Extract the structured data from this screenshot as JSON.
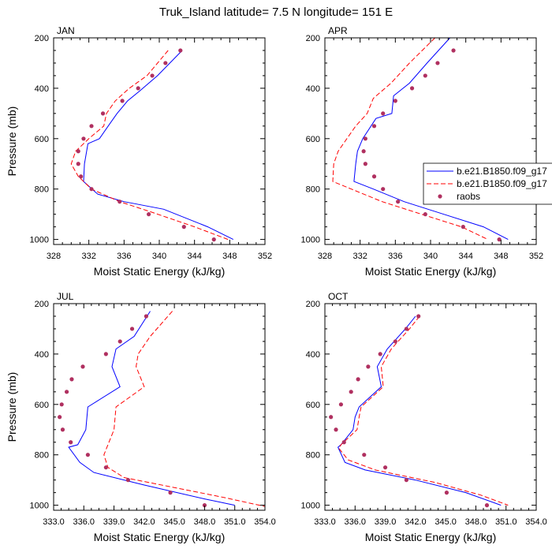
{
  "figure": {
    "title": "Truk_Island  latitude= 7.5 N longitude= 151 E"
  },
  "legend": {
    "placement": "right of APR panel",
    "entries": [
      {
        "label": "b.e21.B1850.f09_g17",
        "color": "#0000ff",
        "style": "solid"
      },
      {
        "label": "b.e21.B1850.f09_g17",
        "color": "#ff0000",
        "style": "dashed"
      },
      {
        "label": "raobs",
        "color": "#b03060",
        "style": "marker"
      }
    ]
  },
  "chart_data": [
    {
      "type": "line",
      "panel": "JAN",
      "xlabel": "Moist Static Energy (kJ/kg)",
      "ylabel": "Pressure (mb)",
      "xlim": [
        328,
        352
      ],
      "ylim": [
        1020,
        200
      ],
      "xticks": [
        328,
        332,
        336,
        340,
        344,
        348,
        352
      ],
      "xtick_labels": [
        "328",
        "332",
        "336",
        "340",
        "344",
        "348",
        "352"
      ],
      "yticks": [
        200,
        400,
        600,
        800,
        1000
      ],
      "ytick_labels": [
        "200",
        "400",
        "600",
        "800",
        "1000"
      ],
      "series": [
        {
          "style": "solid",
          "color": "#0000ff",
          "points": [
            [
              342.6,
              250
            ],
            [
              339.8,
              350
            ],
            [
              337.8,
              410
            ],
            [
              336.4,
              450
            ],
            [
              335.2,
              500
            ],
            [
              334.2,
              550
            ],
            [
              333.2,
              600
            ],
            [
              331.9,
              620
            ],
            [
              331.5,
              700
            ],
            [
              331.4,
              770
            ],
            [
              333.0,
              820
            ],
            [
              336.0,
              850
            ],
            [
              340.5,
              880
            ],
            [
              345.5,
              950
            ],
            [
              348.4,
              1000
            ]
          ]
        },
        {
          "style": "dashed",
          "color": "#ff0000",
          "points": [
            [
              341.0,
              250
            ],
            [
              338.6,
              350
            ],
            [
              336.6,
              400
            ],
            [
              335.0,
              450
            ],
            [
              334.0,
              500
            ],
            [
              333.7,
              550
            ],
            [
              332.0,
              600
            ],
            [
              330.5,
              650
            ],
            [
              330.0,
              700
            ],
            [
              330.8,
              750
            ],
            [
              332.3,
              800
            ],
            [
              335.5,
              850
            ],
            [
              339.0,
              890
            ],
            [
              344.0,
              950
            ],
            [
              347.8,
              1000
            ]
          ]
        },
        {
          "style": "marker",
          "color": "#b03060",
          "points": [
            [
              342.4,
              250
            ],
            [
              340.7,
              300
            ],
            [
              339.2,
              350
            ],
            [
              337.6,
              400
            ],
            [
              335.8,
              450
            ],
            [
              333.6,
              500
            ],
            [
              332.3,
              550
            ],
            [
              331.4,
              600
            ],
            [
              330.8,
              650
            ],
            [
              330.8,
              700
            ],
            [
              331.1,
              750
            ],
            [
              332.3,
              800
            ],
            [
              335.5,
              850
            ],
            [
              338.8,
              900
            ],
            [
              342.8,
              950
            ],
            [
              346.2,
              1000
            ]
          ]
        }
      ]
    },
    {
      "type": "line",
      "panel": "APR",
      "xlabel": "Moist Static Energy (kJ/kg)",
      "ylabel": "",
      "xlim": [
        328,
        352
      ],
      "ylim": [
        1020,
        200
      ],
      "xticks": [
        328,
        332,
        336,
        340,
        344,
        348,
        352
      ],
      "xtick_labels": [
        "328",
        "332",
        "336",
        "340",
        "344",
        "348",
        "352"
      ],
      "yticks": [
        200,
        400,
        600,
        800,
        1000
      ],
      "ytick_labels": [
        "200",
        "400",
        "600",
        "800",
        "1000"
      ],
      "series": [
        {
          "style": "solid",
          "color": "#0000ff",
          "points": [
            [
              342.2,
              200
            ],
            [
              339.6,
              300
            ],
            [
              337.6,
              380
            ],
            [
              335.8,
              430
            ],
            [
              335.6,
              500
            ],
            [
              333.8,
              520
            ],
            [
              332.3,
              600
            ],
            [
              331.7,
              650
            ],
            [
              331.5,
              700
            ],
            [
              331.3,
              770
            ],
            [
              333.5,
              800
            ],
            [
              337.0,
              850
            ],
            [
              341.5,
              900
            ],
            [
              346.0,
              950
            ],
            [
              348.8,
              1000
            ]
          ]
        },
        {
          "style": "dashed",
          "color": "#ff0000",
          "points": [
            [
              340.5,
              200
            ],
            [
              337.6,
              300
            ],
            [
              335.5,
              380
            ],
            [
              333.5,
              440
            ],
            [
              332.8,
              500
            ],
            [
              331.5,
              550
            ],
            [
              330.5,
              600
            ],
            [
              329.5,
              650
            ],
            [
              329.0,
              700
            ],
            [
              328.9,
              770
            ],
            [
              331.0,
              800
            ],
            [
              334.5,
              850
            ],
            [
              339.0,
              900
            ],
            [
              343.5,
              950
            ],
            [
              346.5,
              1000
            ]
          ]
        },
        {
          "style": "marker",
          "color": "#b03060",
          "points": [
            [
              342.6,
              250
            ],
            [
              340.8,
              300
            ],
            [
              339.4,
              350
            ],
            [
              337.9,
              400
            ],
            [
              336.0,
              450
            ],
            [
              334.6,
              500
            ],
            [
              333.6,
              550
            ],
            [
              332.6,
              600
            ],
            [
              332.4,
              650
            ],
            [
              332.6,
              700
            ],
            [
              333.6,
              750
            ],
            [
              334.6,
              800
            ],
            [
              336.3,
              850
            ],
            [
              339.4,
              900
            ],
            [
              343.7,
              950
            ],
            [
              347.8,
              1000
            ]
          ]
        }
      ]
    },
    {
      "type": "line",
      "panel": "JUL",
      "xlabel": "Moist Static Energy (kJ/kg)",
      "ylabel": "Pressure (mb)",
      "xlim": [
        333,
        354
      ],
      "ylim": [
        1020,
        200
      ],
      "xticks": [
        333,
        336,
        339,
        342,
        345,
        348,
        351,
        354
      ],
      "xtick_labels": [
        "333.0",
        "336.0",
        "339.0",
        "342.0",
        "345.0",
        "348.0",
        "351.0",
        "354.0"
      ],
      "yticks": [
        200,
        400,
        600,
        800,
        1000
      ],
      "ytick_labels": [
        "200",
        "400",
        "600",
        "800",
        "1000"
      ],
      "series": [
        {
          "style": "solid",
          "color": "#0000ff",
          "points": [
            [
              342.6,
              230
            ],
            [
              341.0,
              330
            ],
            [
              339.2,
              380
            ],
            [
              338.8,
              450
            ],
            [
              339.6,
              530
            ],
            [
              336.4,
              610
            ],
            [
              336.2,
              700
            ],
            [
              335.4,
              760
            ],
            [
              334.5,
              770
            ],
            [
              335.6,
              830
            ],
            [
              337.0,
              870
            ],
            [
              342.0,
              920
            ],
            [
              348.0,
              975
            ],
            [
              351.0,
              1000
            ]
          ]
        },
        {
          "style": "dashed",
          "color": "#ff0000",
          "points": [
            [
              344.8,
              230
            ],
            [
              342.6,
              330
            ],
            [
              341.4,
              400
            ],
            [
              341.2,
              450
            ],
            [
              342.0,
              530
            ],
            [
              339.2,
              610
            ],
            [
              339.0,
              700
            ],
            [
              338.4,
              760
            ],
            [
              338.0,
              800
            ],
            [
              338.4,
              850
            ],
            [
              340.0,
              890
            ],
            [
              345.0,
              930
            ],
            [
              350.0,
              970
            ],
            [
              354.0,
              1005
            ]
          ]
        },
        {
          "style": "marker",
          "color": "#b03060",
          "points": [
            [
              342.2,
              250
            ],
            [
              340.8,
              300
            ],
            [
              339.6,
              350
            ],
            [
              338.2,
              400
            ],
            [
              335.9,
              450
            ],
            [
              334.8,
              500
            ],
            [
              334.3,
              550
            ],
            [
              333.8,
              600
            ],
            [
              333.6,
              650
            ],
            [
              333.9,
              700
            ],
            [
              334.7,
              750
            ],
            [
              336.4,
              800
            ],
            [
              338.2,
              850
            ],
            [
              340.4,
              900
            ],
            [
              344.6,
              950
            ],
            [
              348.0,
              1000
            ]
          ]
        }
      ]
    },
    {
      "type": "line",
      "panel": "OCT",
      "xlabel": "Moist Static Energy (kJ/kg)",
      "ylabel": "",
      "xlim": [
        333,
        354
      ],
      "ylim": [
        1020,
        200
      ],
      "xticks": [
        333,
        336,
        339,
        342,
        345,
        348,
        351,
        354
      ],
      "xtick_labels": [
        "333.0",
        "336.0",
        "339.0",
        "342.0",
        "345.0",
        "348.0",
        "351.0",
        "354.0"
      ],
      "yticks": [
        200,
        400,
        600,
        800,
        1000
      ],
      "ytick_labels": [
        "200",
        "400",
        "600",
        "800",
        "1000"
      ],
      "series": [
        {
          "style": "solid",
          "color": "#0000ff",
          "points": [
            [
              342.0,
              250
            ],
            [
              341.0,
              300
            ],
            [
              339.2,
              380
            ],
            [
              338.2,
              450
            ],
            [
              338.6,
              530
            ],
            [
              336.4,
              610
            ],
            [
              336.0,
              650
            ],
            [
              335.8,
              700
            ],
            [
              334.6,
              760
            ],
            [
              334.3,
              770
            ],
            [
              335.0,
              830
            ],
            [
              337.0,
              860
            ],
            [
              342.0,
              900
            ],
            [
              347.0,
              950
            ],
            [
              350.5,
              1000
            ]
          ]
        },
        {
          "style": "dashed",
          "color": "#ff0000",
          "points": [
            [
              342.4,
              250
            ],
            [
              341.4,
              300
            ],
            [
              339.6,
              380
            ],
            [
              338.6,
              450
            ],
            [
              338.8,
              530
            ],
            [
              336.6,
              610
            ],
            [
              336.4,
              650
            ],
            [
              336.2,
              700
            ],
            [
              334.6,
              760
            ],
            [
              334.4,
              775
            ],
            [
              335.3,
              820
            ],
            [
              338.0,
              860
            ],
            [
              344.0,
              910
            ],
            [
              348.5,
              960
            ],
            [
              351.2,
              1000
            ]
          ]
        },
        {
          "style": "marker",
          "color": "#b03060",
          "points": [
            [
              342.3,
              250
            ],
            [
              341.1,
              300
            ],
            [
              340.0,
              350
            ],
            [
              338.5,
              400
            ],
            [
              337.3,
              450
            ],
            [
              336.3,
              500
            ],
            [
              335.6,
              550
            ],
            [
              334.6,
              600
            ],
            [
              333.6,
              650
            ],
            [
              334.1,
              700
            ],
            [
              334.9,
              750
            ],
            [
              336.9,
              800
            ],
            [
              339.0,
              850
            ],
            [
              341.1,
              900
            ],
            [
              345.1,
              950
            ],
            [
              349.1,
              1000
            ]
          ]
        }
      ]
    }
  ]
}
